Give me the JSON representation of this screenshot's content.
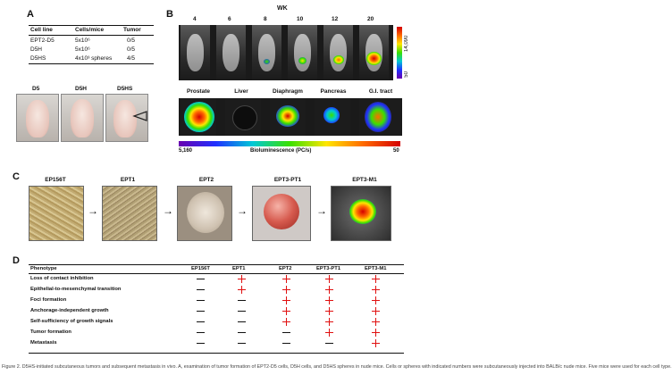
{
  "panel_a": {
    "label": "A",
    "table": {
      "headers": [
        "Cell line",
        "Cells/mice",
        "Tumor"
      ],
      "rows": [
        [
          "EPT2-D5",
          "5x10⁶",
          "0/5"
        ],
        [
          "D5H",
          "5x10⁶",
          "0/5"
        ],
        [
          "D5HS",
          "4x10³  spheres",
          "4/5"
        ]
      ]
    },
    "mouse_labels": [
      "D5",
      "D5H",
      "D5HS"
    ]
  },
  "panel_b": {
    "label": "B",
    "wk_title": "WK",
    "weeks": [
      "4",
      "6",
      "8",
      "10",
      "12",
      "20"
    ],
    "cbar_top": "14,090",
    "cbar_bottom": "50",
    "organs": [
      "Prostate",
      "Liver",
      "Diaphragm",
      "Pancreas",
      "G.I. tract"
    ],
    "bl_min": "5,160",
    "bl_title": "Bioluminescence (PC/s)",
    "bl_max": "50"
  },
  "panel_c": {
    "label": "C",
    "stages": [
      "EP156T",
      "EPT1",
      "EPT2",
      "EPT3-PT1",
      "EPT3-M1"
    ],
    "arrow": "→"
  },
  "panel_d": {
    "label": "D",
    "columns": [
      "Phenotype",
      "EP156T",
      "EPT1",
      "EPT2",
      "EPT3-PT1",
      "EPT3-M1"
    ],
    "rows": [
      {
        "phenotype": "Loss of contact inhibition",
        "marks": [
          "-",
          "+",
          "+",
          "+",
          "+"
        ]
      },
      {
        "phenotype": "Epithelial-to-mesenchymal transition",
        "marks": [
          "-",
          "+",
          "+",
          "+",
          "+"
        ]
      },
      {
        "phenotype": "Foci formation",
        "marks": [
          "-",
          "-",
          "+",
          "+",
          "+"
        ]
      },
      {
        "phenotype": "Anchorage-independent growth",
        "marks": [
          "-",
          "-",
          "+",
          "+",
          "+"
        ]
      },
      {
        "phenotype": "Self-sufficiency of growth signals",
        "marks": [
          "-",
          "-",
          "+",
          "+",
          "+"
        ]
      },
      {
        "phenotype": "Tumor formation",
        "marks": [
          "-",
          "-",
          "-",
          "+",
          "+"
        ]
      },
      {
        "phenotype": "Metastasis",
        "marks": [
          "-",
          "-",
          "-",
          "-",
          "+"
        ]
      }
    ]
  },
  "caption": "Figure 2.  D5HS-initiated subcutaneous tumors and subsequent metastasis in vivo. A, examination of tumor formation of EPT2-D5 cells, D5H cells, and D5HS spheres in nude mice. Cells or spheres with indicated numbers were subcutaneously injected into BALB/c nude mice. Five mice were used for each cell type."
}
